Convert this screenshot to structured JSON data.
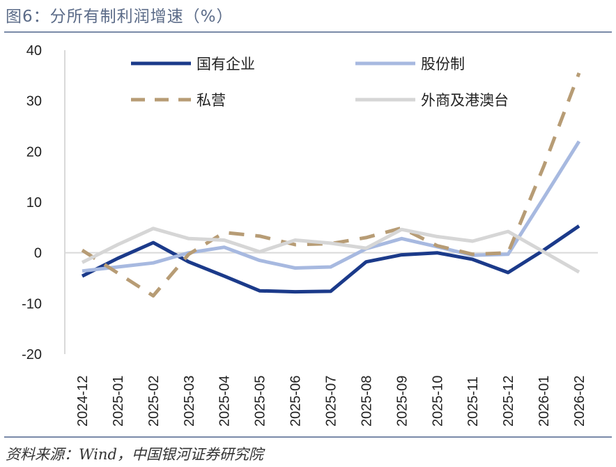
{
  "title": "图6：分所有制利润增速（%）",
  "source": "资料来源：Wind，中国银河证券研究院",
  "chart_data": {
    "type": "line",
    "title": "图6：分所有制利润增速（%）",
    "ylabel": "%",
    "ylim": [
      -20,
      40
    ],
    "yticks": [
      40,
      30,
      20,
      10,
      0,
      -10,
      -20
    ],
    "categories": [
      "2024-12",
      "2025-01",
      "2025-02",
      "2025-03",
      "2025-04",
      "2025-05",
      "2025-06",
      "2025-07",
      "2025-08",
      "2025-09",
      "2025-10",
      "2025-11",
      "2025-12",
      "2026-01",
      "2026-02"
    ],
    "series": [
      {
        "name": "国有企业",
        "color": "#1b3a8a",
        "dash": "solid",
        "values": [
          -4.6,
          -1.1,
          2.0,
          -1.8,
          -4.6,
          -7.5,
          -7.7,
          -7.6,
          -1.8,
          -0.4,
          0.0,
          -1.3,
          -3.9,
          0.5,
          5.3
        ]
      },
      {
        "name": "股份制",
        "color": "#a7b9e0",
        "dash": "solid",
        "values": [
          -3.6,
          -2.8,
          -2.0,
          0.0,
          1.1,
          -1.5,
          -3.0,
          -2.8,
          0.8,
          2.8,
          1.2,
          -0.5,
          -0.3,
          10.8,
          22.0
        ]
      },
      {
        "name": "私营",
        "color": "#b79c75",
        "dash": "dashed",
        "values": [
          0.5,
          -4.0,
          -8.5,
          -0.3,
          4.0,
          3.3,
          1.6,
          1.8,
          3.0,
          4.9,
          1.4,
          -0.3,
          0.0,
          17.0,
          35.5
        ]
      },
      {
        "name": "外商及港澳台",
        "color": "#d6d6d6",
        "dash": "solid",
        "values": [
          -1.9,
          1.6,
          4.8,
          2.8,
          2.5,
          0.2,
          2.5,
          1.9,
          0.9,
          4.6,
          3.2,
          2.3,
          4.2,
          0.2,
          -3.8
        ]
      }
    ],
    "legend": "top, two columns",
    "grid": false
  }
}
